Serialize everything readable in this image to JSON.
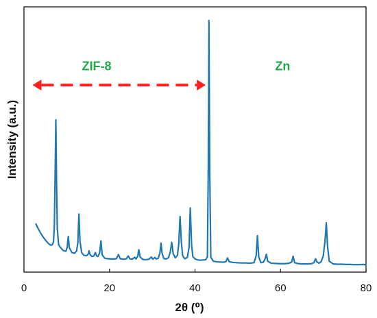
{
  "chart_data": {
    "type": "line",
    "xlabel": "2θ (⁰)",
    "ylabel": "Intensity (a.u.)",
    "xlim": [
      0,
      80
    ],
    "ylim": [
      0,
      100
    ],
    "x_ticks": [
      "0",
      "20",
      "40",
      "60",
      "80"
    ],
    "grid": false,
    "legend": "none",
    "series": [
      {
        "color": "#1F77B4",
        "points": [
          [
            2.8,
            18.0
          ],
          [
            3.3,
            16.2
          ],
          [
            3.8,
            14.6
          ],
          [
            4.3,
            13.2
          ],
          [
            4.8,
            12.0
          ],
          [
            5.3,
            10.9
          ],
          [
            5.8,
            10.0
          ],
          [
            6.2,
            9.5
          ],
          [
            6.6,
            9.6
          ],
          [
            6.9,
            10.8
          ],
          [
            7.1,
            17.0
          ],
          [
            7.3,
            40.0
          ],
          [
            7.45,
            60.0
          ],
          [
            7.6,
            37.0
          ],
          [
            7.8,
            16.0
          ],
          [
            8.1,
            9.6
          ],
          [
            8.6,
            8.4
          ],
          [
            9.2,
            7.3
          ],
          [
            9.8,
            7.0
          ],
          [
            10.1,
            8.5
          ],
          [
            10.35,
            13.0
          ],
          [
            10.6,
            8.5
          ],
          [
            11.2,
            6.5
          ],
          [
            11.8,
            6.2
          ],
          [
            12.3,
            7.1
          ],
          [
            12.6,
            10.5
          ],
          [
            12.85,
            22.0
          ],
          [
            13.1,
            11.0
          ],
          [
            13.5,
            6.4
          ],
          [
            14.0,
            5.4
          ],
          [
            14.6,
            5.2
          ],
          [
            15.0,
            5.8
          ],
          [
            15.2,
            7.2
          ],
          [
            15.45,
            5.7
          ],
          [
            15.9,
            4.9
          ],
          [
            16.3,
            5.1
          ],
          [
            16.7,
            6.5
          ],
          [
            16.95,
            5.2
          ],
          [
            17.3,
            4.9
          ],
          [
            17.7,
            6.4
          ],
          [
            18.0,
            11.2
          ],
          [
            18.3,
            5.5
          ],
          [
            18.9,
            4.2
          ],
          [
            19.6,
            4.0
          ],
          [
            20.3,
            3.9
          ],
          [
            21.0,
            3.9
          ],
          [
            21.6,
            4.0
          ],
          [
            22.1,
            5.7
          ],
          [
            22.5,
            4.0
          ],
          [
            23.2,
            3.8
          ],
          [
            23.9,
            3.9
          ],
          [
            24.4,
            5.1
          ],
          [
            24.8,
            3.9
          ],
          [
            25.3,
            3.8
          ],
          [
            25.9,
            4.6
          ],
          [
            26.2,
            3.9
          ],
          [
            26.6,
            5.0
          ],
          [
            26.85,
            7.6
          ],
          [
            27.15,
            4.7
          ],
          [
            27.8,
            3.7
          ],
          [
            28.5,
            3.6
          ],
          [
            29.2,
            3.8
          ],
          [
            29.8,
            4.7
          ],
          [
            30.1,
            3.8
          ],
          [
            30.6,
            4.5
          ],
          [
            30.9,
            3.9
          ],
          [
            31.4,
            4.2
          ],
          [
            31.8,
            6.4
          ],
          [
            32.05,
            10.3
          ],
          [
            32.3,
            6.2
          ],
          [
            32.7,
            4.1
          ],
          [
            33.2,
            3.9
          ],
          [
            33.8,
            4.4
          ],
          [
            34.2,
            6.6
          ],
          [
            34.55,
            10.6
          ],
          [
            34.9,
            6.0
          ],
          [
            35.4,
            4.4
          ],
          [
            35.9,
            5.4
          ],
          [
            36.2,
            10.0
          ],
          [
            36.5,
            21.0
          ],
          [
            36.8,
            11.0
          ],
          [
            37.1,
            5.3
          ],
          [
            37.6,
            4.0
          ],
          [
            38.2,
            4.5
          ],
          [
            38.6,
            8.5
          ],
          [
            38.9,
            24.5
          ],
          [
            39.2,
            9.5
          ],
          [
            39.5,
            4.8
          ],
          [
            40.1,
            3.8
          ],
          [
            40.7,
            3.5
          ],
          [
            41.3,
            3.4
          ],
          [
            41.9,
            3.5
          ],
          [
            42.5,
            3.6
          ],
          [
            42.9,
            4.8
          ],
          [
            43.1,
            40.0
          ],
          [
            43.25,
            100.0
          ],
          [
            43.45,
            38.0
          ],
          [
            43.7,
            4.6
          ],
          [
            44.3,
            3.0
          ],
          [
            45.0,
            2.8
          ],
          [
            45.8,
            2.7
          ],
          [
            46.6,
            2.6
          ],
          [
            47.2,
            2.8
          ],
          [
            47.6,
            4.3
          ],
          [
            48.0,
            2.8
          ],
          [
            48.8,
            2.5
          ],
          [
            49.8,
            2.4
          ],
          [
            50.8,
            2.3
          ],
          [
            51.8,
            2.3
          ],
          [
            52.8,
            2.2
          ],
          [
            53.8,
            2.4
          ],
          [
            54.3,
            5.2
          ],
          [
            54.6,
            13.3
          ],
          [
            54.9,
            4.8
          ],
          [
            55.4,
            2.4
          ],
          [
            56.0,
            2.6
          ],
          [
            56.4,
            4.0
          ],
          [
            56.7,
            5.8
          ],
          [
            57.0,
            3.0
          ],
          [
            57.8,
            2.2
          ],
          [
            58.8,
            2.1
          ],
          [
            59.8,
            2.0
          ],
          [
            60.8,
            2.0
          ],
          [
            61.8,
            2.1
          ],
          [
            62.6,
            2.6
          ],
          [
            62.95,
            5.0
          ],
          [
            63.3,
            2.4
          ],
          [
            64.2,
            2.0
          ],
          [
            65.2,
            1.9
          ],
          [
            66.2,
            1.9
          ],
          [
            67.2,
            2.0
          ],
          [
            67.8,
            2.4
          ],
          [
            68.2,
            4.0
          ],
          [
            68.5,
            2.7
          ],
          [
            69.0,
            2.2
          ],
          [
            69.5,
            2.8
          ],
          [
            70.0,
            5.2
          ],
          [
            70.4,
            11.0
          ],
          [
            70.7,
            18.5
          ],
          [
            71.0,
            9.0
          ],
          [
            71.4,
            3.0
          ],
          [
            72.3,
            1.9
          ],
          [
            73.3,
            1.8
          ],
          [
            74.3,
            1.8
          ],
          [
            75.3,
            1.7
          ],
          [
            76.3,
            1.7
          ],
          [
            77.3,
            1.6
          ],
          [
            78.3,
            1.6
          ],
          [
            79.3,
            1.7
          ],
          [
            80.0,
            1.6
          ]
        ]
      }
    ],
    "annotations": [
      {
        "label": "ZIF-8",
        "text_x": 17,
        "text_y": 80,
        "color": "#21A64A"
      },
      {
        "label": "Zn",
        "text_x": 60.5,
        "text_y": 80,
        "color": "#21A64A"
      }
    ],
    "range_arrow": {
      "x_start": 2,
      "x_end": 42.5,
      "y": 74,
      "color": "#FF1F1F"
    }
  }
}
